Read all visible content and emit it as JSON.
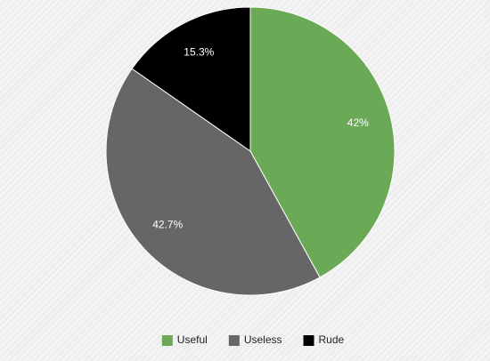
{
  "chart_data": {
    "type": "pie",
    "categories": [
      "Useful",
      "Useless",
      "Rude"
    ],
    "values": [
      42,
      42.7,
      15.3
    ],
    "value_labels": [
      "42%",
      "42.7%",
      "15.3%"
    ],
    "colors": [
      "#6aaa57",
      "#666666",
      "#000000"
    ],
    "legend": "bottom"
  }
}
